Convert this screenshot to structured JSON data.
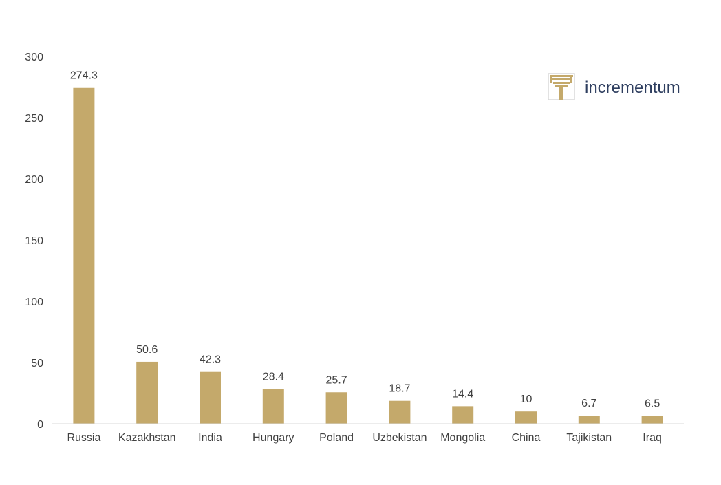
{
  "chart_data": {
    "type": "bar",
    "categories": [
      "Russia",
      "Kazakhstan",
      "India",
      "Hungary",
      "Poland",
      "Uzbekistan",
      "Mongolia",
      "China",
      "Tajikistan",
      "Iraq"
    ],
    "values": [
      274.3,
      50.6,
      42.3,
      28.4,
      25.7,
      18.7,
      14.4,
      10,
      6.7,
      6.5
    ],
    "value_labels": [
      "274.3",
      "50.6",
      "42.3",
      "28.4",
      "25.7",
      "18.7",
      "14.4",
      "10",
      "6.7",
      "6.5"
    ],
    "title": "",
    "xlabel": "",
    "ylabel": "",
    "ylim": [
      0,
      300
    ],
    "yticks": [
      0,
      50,
      100,
      150,
      200,
      250,
      300
    ],
    "grid": false,
    "legend": "none",
    "bar_color": "#c4a96b",
    "axis_color": "#d9d9d9"
  },
  "brand": {
    "name": "incrementum",
    "icon": "tree-logo-icon",
    "text_color": "#2e3e5f",
    "icon_color": "#c4a96b"
  }
}
